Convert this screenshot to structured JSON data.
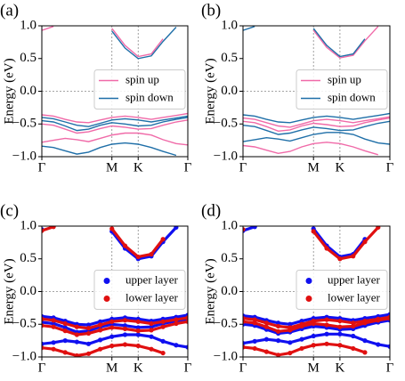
{
  "chart_data": [
    {
      "type": "line",
      "label": "(a)",
      "ylabel": "Energy (eV)",
      "x": [
        0,
        0.08,
        0.16,
        0.24,
        0.32,
        0.4,
        0.48,
        0.57,
        0.66,
        0.75,
        0.83,
        0.92,
        1.0
      ],
      "xlim": [
        0,
        1
      ],
      "xticks": [
        {
          "value": 0,
          "label": "Γ"
        },
        {
          "value": 0.48,
          "label": "M"
        },
        {
          "value": 0.66,
          "label": "K"
        },
        {
          "value": 1,
          "label": "Γ"
        }
      ],
      "ylim": [
        -1,
        1
      ],
      "yticks": [
        {
          "value": -1,
          "label": "−1.0"
        },
        {
          "value": -0.5,
          "label": "−0.5"
        },
        {
          "value": 0,
          "label": "0.0"
        },
        {
          "value": 0.5,
          "label": "0.5"
        },
        {
          "value": 1,
          "label": "1.0"
        }
      ],
      "vlines": [
        0.48,
        0.66
      ],
      "hlines": [
        0
      ],
      "legend": "center right",
      "series": [
        {
          "name": "spin up",
          "color": "#f06aa8",
          "bands": [
            [
              0.93,
              0.99,
              null,
              null,
              null,
              null,
              0.96,
              0.7,
              0.53,
              0.57,
              0.8,
              null,
              null
            ],
            [
              -0.36,
              -0.38,
              -0.43,
              -0.47,
              -0.48,
              -0.44,
              -0.4,
              -0.38,
              -0.4,
              -0.43,
              -0.4,
              -0.37,
              -0.34
            ],
            [
              -0.5,
              -0.52,
              -0.58,
              -0.64,
              -0.62,
              -0.57,
              -0.53,
              -0.55,
              -0.58,
              -0.57,
              -0.52,
              -0.47,
              -0.44
            ],
            [
              -0.78,
              -0.75,
              -0.72,
              -0.74,
              -0.77,
              -0.72,
              -0.67,
              -0.64,
              -0.64,
              -0.67,
              -0.74,
              -0.8,
              -0.82
            ]
          ]
        },
        {
          "name": "spin down",
          "color": "#1f6fa8",
          "bands": [
            [
              0.95,
              null,
              null,
              null,
              null,
              null,
              0.92,
              0.66,
              0.5,
              0.54,
              0.76,
              0.98,
              null
            ],
            [
              -0.4,
              -0.42,
              -0.47,
              -0.52,
              -0.54,
              -0.49,
              -0.44,
              -0.42,
              -0.44,
              -0.47,
              -0.44,
              -0.41,
              -0.38
            ],
            [
              -0.45,
              -0.47,
              -0.53,
              -0.6,
              -0.58,
              -0.52,
              -0.48,
              -0.5,
              -0.53,
              -0.52,
              -0.47,
              -0.43,
              -0.4
            ],
            [
              -0.84,
              -0.86,
              -0.91,
              -0.96,
              -0.93,
              -0.86,
              -0.81,
              -0.79,
              -0.81,
              -0.86,
              -0.92,
              -0.98,
              null
            ]
          ]
        }
      ]
    },
    {
      "type": "line",
      "label": "(b)",
      "ylabel": "Energy (eV)",
      "x": [
        0,
        0.08,
        0.16,
        0.24,
        0.32,
        0.4,
        0.48,
        0.57,
        0.66,
        0.75,
        0.83,
        0.92,
        1.0
      ],
      "xlim": [
        0,
        1
      ],
      "xticks": [
        {
          "value": 0,
          "label": "Γ"
        },
        {
          "value": 0.48,
          "label": "M"
        },
        {
          "value": 0.66,
          "label": "K"
        },
        {
          "value": 1,
          "label": "Γ"
        }
      ],
      "ylim": [
        -1,
        1
      ],
      "yticks": [
        {
          "value": -1,
          "label": "−1.0"
        },
        {
          "value": -0.5,
          "label": "−0.5"
        },
        {
          "value": 0,
          "label": "0.0"
        },
        {
          "value": 0.5,
          "label": "0.5"
        },
        {
          "value": 1,
          "label": "1.0"
        }
      ],
      "vlines": [
        0.48,
        0.66
      ],
      "hlines": [
        0
      ],
      "legend": "center right",
      "series": [
        {
          "name": "spin up",
          "color": "#f06aa8",
          "bands": [
            [
              0.95,
              null,
              null,
              null,
              null,
              null,
              0.93,
              0.67,
              0.51,
              0.55,
              0.77,
              0.99,
              null
            ],
            [
              -0.41,
              -0.43,
              -0.48,
              -0.53,
              -0.55,
              -0.5,
              -0.45,
              -0.43,
              -0.45,
              -0.48,
              -0.45,
              -0.42,
              -0.39
            ],
            [
              -0.46,
              -0.48,
              -0.54,
              -0.61,
              -0.59,
              -0.53,
              -0.49,
              -0.51,
              -0.54,
              -0.53,
              -0.48,
              -0.44,
              -0.41
            ],
            [
              -0.83,
              -0.85,
              -0.9,
              -0.95,
              -0.92,
              -0.85,
              -0.8,
              -0.78,
              -0.8,
              -0.85,
              -0.91,
              -0.97,
              null
            ]
          ]
        },
        {
          "name": "spin down",
          "color": "#1f6fa8",
          "bands": [
            [
              0.93,
              0.99,
              null,
              null,
              null,
              null,
              0.96,
              0.7,
              0.53,
              0.57,
              0.8,
              null,
              null
            ],
            [
              -0.36,
              -0.38,
              -0.43,
              -0.47,
              -0.48,
              -0.44,
              -0.4,
              -0.38,
              -0.4,
              -0.43,
              -0.4,
              -0.37,
              -0.34
            ],
            [
              -0.52,
              -0.54,
              -0.6,
              -0.66,
              -0.64,
              -0.59,
              -0.55,
              -0.57,
              -0.6,
              -0.59,
              -0.54,
              -0.49,
              -0.46
            ],
            [
              -0.77,
              -0.74,
              -0.71,
              -0.73,
              -0.76,
              -0.71,
              -0.66,
              -0.63,
              -0.63,
              -0.66,
              -0.73,
              -0.79,
              -0.81
            ]
          ]
        }
      ]
    },
    {
      "type": "scatter",
      "label": "(c)",
      "ylabel": "Energy (eV)",
      "x": [
        0,
        0.08,
        0.16,
        0.24,
        0.32,
        0.4,
        0.48,
        0.57,
        0.66,
        0.75,
        0.83,
        0.92,
        1.0
      ],
      "xlim": [
        0,
        1
      ],
      "xticks": [
        {
          "value": 0,
          "label": "Γ"
        },
        {
          "value": 0.48,
          "label": "M"
        },
        {
          "value": 0.66,
          "label": "K"
        },
        {
          "value": 1,
          "label": "Γ"
        }
      ],
      "ylim": [
        -1,
        1
      ],
      "yticks": [
        {
          "value": -1,
          "label": "−1.0"
        },
        {
          "value": -0.5,
          "label": "−0.5"
        },
        {
          "value": 0,
          "label": "0.0"
        },
        {
          "value": 0.5,
          "label": "0.5"
        },
        {
          "value": 1,
          "label": "1.0"
        }
      ],
      "vlines": [
        0.48,
        0.66
      ],
      "hlines": [
        0
      ],
      "legend": "center right",
      "series": [
        {
          "name": "upper layer",
          "color": "#1010f0",
          "bands": [
            [
              0.95,
              null,
              null,
              null,
              null,
              null,
              0.92,
              0.66,
              0.5,
              0.54,
              0.76,
              0.98,
              null
            ],
            [
              -0.38,
              -0.4,
              -0.45,
              -0.5,
              -0.51,
              -0.46,
              -0.42,
              -0.4,
              -0.42,
              -0.45,
              -0.42,
              -0.39,
              -0.36
            ],
            [
              -0.47,
              -0.49,
              -0.55,
              -0.62,
              -0.6,
              -0.54,
              -0.5,
              -0.52,
              -0.55,
              -0.54,
              -0.49,
              -0.45,
              -0.42
            ],
            [
              -0.8,
              -0.78,
              -0.75,
              -0.77,
              -0.8,
              -0.74,
              -0.69,
              -0.66,
              -0.66,
              -0.69,
              -0.76,
              -0.82,
              -0.85
            ]
          ]
        },
        {
          "name": "lower layer",
          "color": "#e01010",
          "bands": [
            [
              0.93,
              0.99,
              null,
              null,
              null,
              null,
              0.96,
              0.7,
              0.53,
              0.57,
              0.8,
              null,
              null
            ],
            [
              -0.42,
              -0.44,
              -0.49,
              -0.54,
              -0.56,
              -0.51,
              -0.46,
              -0.44,
              -0.46,
              -0.49,
              -0.46,
              -0.43,
              -0.4
            ],
            [
              -0.52,
              -0.54,
              -0.6,
              -0.66,
              -0.64,
              -0.59,
              -0.55,
              -0.57,
              -0.6,
              -0.59,
              -0.54,
              -0.49,
              -0.46
            ],
            [
              -0.86,
              -0.88,
              -0.93,
              -0.98,
              -0.95,
              -0.88,
              -0.83,
              -0.81,
              -0.83,
              -0.88,
              -0.94,
              null,
              null
            ]
          ]
        }
      ]
    },
    {
      "type": "scatter",
      "label": "(d)",
      "ylabel": "Energy (eV)",
      "x": [
        0,
        0.08,
        0.16,
        0.24,
        0.32,
        0.4,
        0.48,
        0.57,
        0.66,
        0.75,
        0.83,
        0.92,
        1.0
      ],
      "xlim": [
        0,
        1
      ],
      "xticks": [
        {
          "value": 0,
          "label": "Γ"
        },
        {
          "value": 0.48,
          "label": "M"
        },
        {
          "value": 0.66,
          "label": "K"
        },
        {
          "value": 1,
          "label": "Γ"
        }
      ],
      "ylim": [
        -1,
        1
      ],
      "yticks": [
        {
          "value": -1,
          "label": "−1.0"
        },
        {
          "value": -0.5,
          "label": "−0.5"
        },
        {
          "value": 0,
          "label": "0.0"
        },
        {
          "value": 0.5,
          "label": "0.5"
        },
        {
          "value": 1,
          "label": "1.0"
        }
      ],
      "vlines": [
        0.48,
        0.66
      ],
      "hlines": [
        0
      ],
      "legend": "center right",
      "series": [
        {
          "name": "upper layer",
          "color": "#1010f0",
          "bands": [
            [
              0.93,
              0.99,
              null,
              null,
              null,
              null,
              0.96,
              0.7,
              0.53,
              0.57,
              0.8,
              null,
              null
            ],
            [
              -0.37,
              -0.39,
              -0.44,
              -0.48,
              -0.5,
              -0.45,
              -0.41,
              -0.39,
              -0.41,
              -0.44,
              -0.41,
              -0.38,
              -0.35
            ],
            [
              -0.5,
              -0.52,
              -0.58,
              -0.64,
              -0.62,
              -0.57,
              -0.53,
              -0.55,
              -0.58,
              -0.57,
              -0.52,
              -0.47,
              -0.44
            ],
            [
              -0.79,
              -0.76,
              -0.73,
              -0.75,
              -0.78,
              -0.73,
              -0.68,
              -0.65,
              -0.65,
              -0.68,
              -0.75,
              -0.81,
              -0.84
            ]
          ]
        },
        {
          "name": "lower layer",
          "color": "#e01010",
          "bands": [
            [
              0.95,
              null,
              null,
              null,
              null,
              null,
              0.92,
              0.66,
              0.5,
              0.54,
              0.76,
              0.98,
              null
            ],
            [
              -0.41,
              -0.43,
              -0.48,
              -0.53,
              -0.55,
              -0.5,
              -0.45,
              -0.43,
              -0.45,
              -0.48,
              -0.45,
              -0.42,
              -0.39
            ],
            [
              -0.46,
              -0.48,
              -0.54,
              -0.61,
              -0.59,
              -0.53,
              -0.49,
              -0.51,
              -0.54,
              -0.53,
              -0.48,
              -0.44,
              -0.41
            ],
            [
              -0.85,
              -0.87,
              -0.92,
              -0.97,
              -0.94,
              -0.87,
              -0.82,
              -0.8,
              -0.82,
              -0.87,
              -0.93,
              null,
              null
            ]
          ]
        }
      ]
    }
  ]
}
